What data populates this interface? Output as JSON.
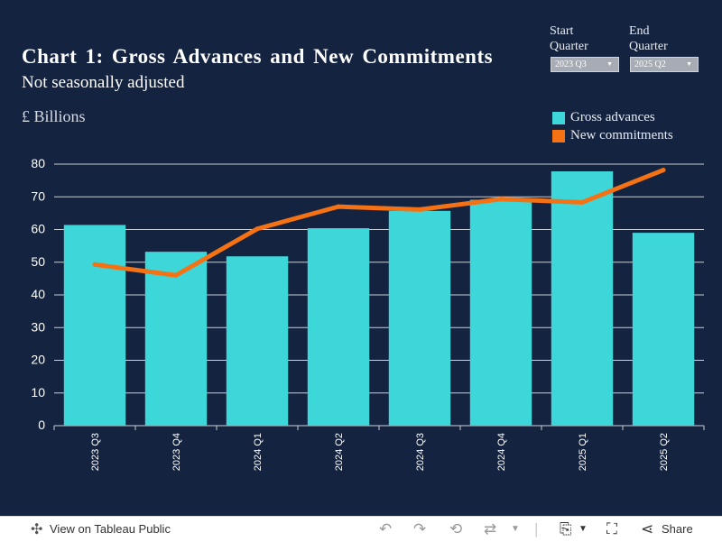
{
  "title": "Chart 1: Gross Advances and New Commitments",
  "subtitle": "Not seasonally adjusted",
  "unit_label": "£ Billions",
  "filters": {
    "start": {
      "label": "Start Quarter",
      "value": "2023 Q3"
    },
    "end": {
      "label": "End Quarter",
      "value": "2025 Q2"
    }
  },
  "legend": [
    {
      "label": "Gross advances",
      "color": "#3dd7da"
    },
    {
      "label": "New commitments",
      "color": "#f47114"
    }
  ],
  "chart_data": {
    "type": "bar",
    "categories": [
      "2023 Q3",
      "2023 Q4",
      "2024 Q1",
      "2024 Q2",
      "2024 Q3",
      "2024 Q4",
      "2025 Q1",
      "2025 Q2"
    ],
    "series": [
      {
        "name": "Gross advances",
        "type": "bar",
        "color": "#3dd7da",
        "values": [
          61.4,
          53.2,
          51.8,
          60.4,
          65.7,
          69.1,
          77.8,
          59.0
        ]
      },
      {
        "name": "New commitments",
        "type": "line",
        "color": "#f47114",
        "values": [
          49.3,
          46.0,
          60.2,
          67.0,
          66.1,
          69.3,
          68.3,
          78.2
        ]
      }
    ],
    "ylabel": "£ Billions",
    "ylim": [
      0,
      80
    ],
    "yticks": [
      0,
      10,
      20,
      30,
      40,
      50,
      60,
      70,
      80
    ],
    "grid": true,
    "legend_position": "top-right"
  },
  "toolbar": {
    "view_label": "View on Tableau Public",
    "share_label": "Share",
    "icons": [
      "tableau-icon",
      "undo-icon",
      "redo-icon",
      "revert-icon",
      "refresh-icon",
      "pause-icon",
      "download-icon",
      "fullscreen-icon",
      "share-icon"
    ]
  }
}
